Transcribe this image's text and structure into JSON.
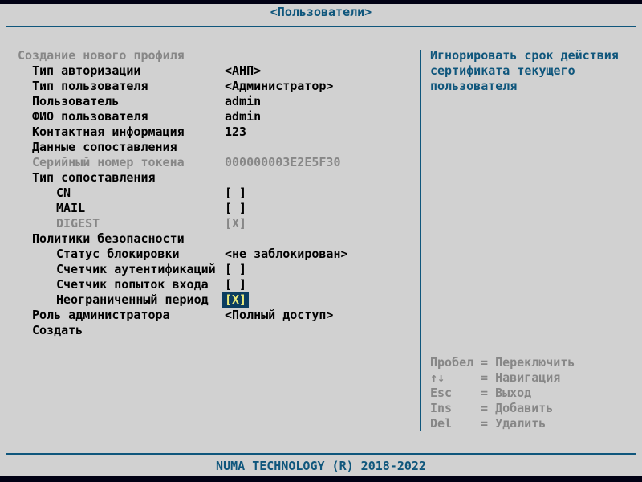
{
  "window": {
    "title": "<Пользователи>",
    "footer": "NUMA TECHNOLOGY (R) 2018-2022"
  },
  "colors": {
    "background": "#d1d1d1",
    "accent_blue": "#0f567c",
    "disabled_gray": "#878787",
    "text_black": "#000000",
    "bar_black": "#010114",
    "highlight_bg": "#0b3d60",
    "highlight_text": "#ebeb7c"
  },
  "form": {
    "rows": [
      {
        "label": "Создание нового профиля",
        "value": "",
        "indent": 0,
        "state": "disabled"
      },
      {
        "label": "Тип авторизации",
        "value": "<АНП>",
        "indent": 1,
        "state": "normal"
      },
      {
        "label": "Тип пользователя",
        "value": "<Администратор>",
        "indent": 1,
        "state": "normal"
      },
      {
        "label": "Пользователь",
        "value": "admin",
        "indent": 1,
        "state": "normal"
      },
      {
        "label": "ФИО пользователя",
        "value": "admin",
        "indent": 1,
        "state": "normal"
      },
      {
        "label": "Контактная информация",
        "value": "123",
        "indent": 1,
        "state": "normal"
      },
      {
        "label": "Данные сопоставления",
        "value": "",
        "indent": 1,
        "state": "normal"
      },
      {
        "label": "Серийный номер токена",
        "value": "000000003E2E5F30",
        "indent": 1,
        "state": "disabled"
      },
      {
        "label": "Тип сопоставления",
        "value": "",
        "indent": 1,
        "state": "normal"
      },
      {
        "label": "CN",
        "value": "[ ]",
        "indent": 2,
        "state": "normal"
      },
      {
        "label": "MAIL",
        "value": "[ ]",
        "indent": 2,
        "state": "normal"
      },
      {
        "label": "DIGEST",
        "value": "[X]",
        "indent": 2,
        "state": "disabled"
      },
      {
        "label": "Политики безопасности",
        "value": "",
        "indent": 1,
        "state": "normal"
      },
      {
        "label": "Статус блокировки",
        "value": "<не заблокирован>",
        "indent": 2,
        "state": "normal"
      },
      {
        "label": "Счетчик аутентификаций",
        "value": "[ ]",
        "indent": 2,
        "state": "normal"
      },
      {
        "label": "Счетчик попыток входа",
        "value": "[ ]",
        "indent": 2,
        "state": "normal"
      },
      {
        "label": "Неограниченный период",
        "value": "[X]",
        "indent": 2,
        "state": "selected"
      },
      {
        "label": "Роль администратора",
        "value": "<Полный доступ>",
        "indent": 1,
        "state": "normal"
      },
      {
        "label": "Создать",
        "value": "",
        "indent": 1,
        "state": "normal"
      }
    ]
  },
  "help": {
    "lines": [
      "Игнорировать срок действия",
      "сертификата текущего",
      "пользователя"
    ]
  },
  "hints": [
    {
      "key": "Пробел",
      "sep": "=",
      "action": "Переключить"
    },
    {
      "key": "↑↓",
      "sep": "=",
      "action": "Навигация"
    },
    {
      "key": "Esc",
      "sep": "=",
      "action": "Выход"
    },
    {
      "key": "Ins",
      "sep": "=",
      "action": "Добавить"
    },
    {
      "key": "Del",
      "sep": "=",
      "action": "Удалить"
    }
  ]
}
